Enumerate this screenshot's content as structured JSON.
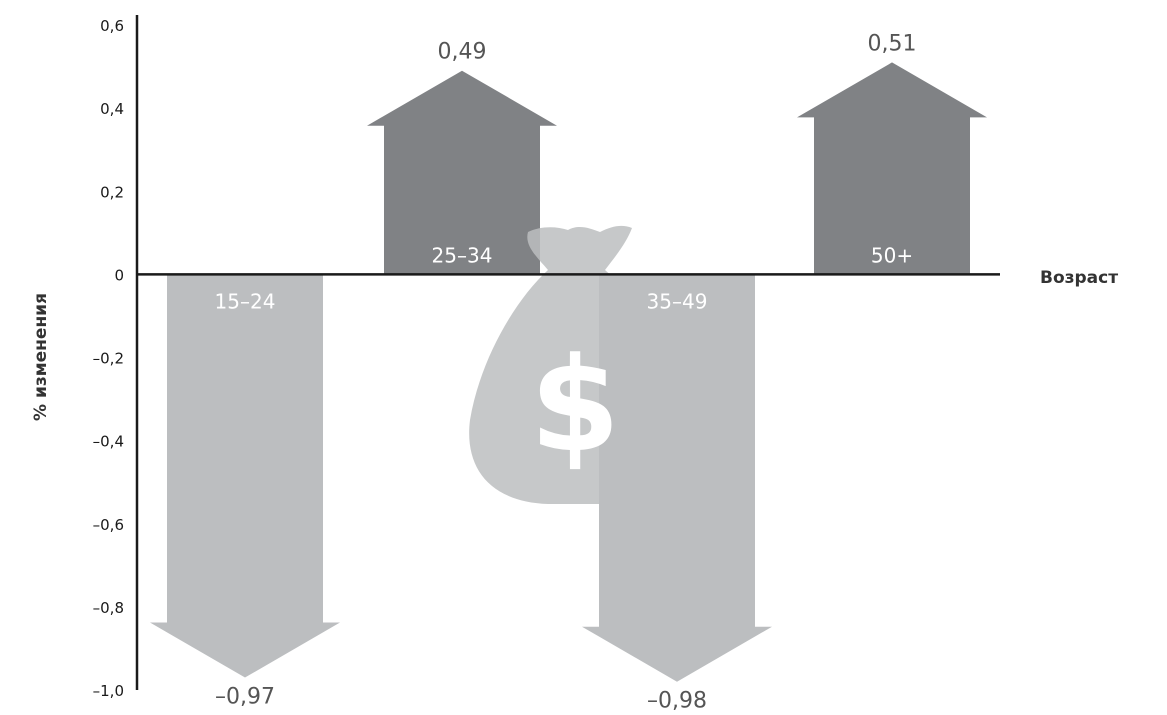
{
  "chart_data": {
    "type": "bar",
    "categories": [
      "15–24",
      "25–34",
      "35–49",
      "50+"
    ],
    "values": [
      -0.97,
      0.49,
      -0.98,
      0.51
    ],
    "value_labels": [
      "–0,97",
      "0,49",
      "–0,98",
      "0,51"
    ],
    "ylabel": "% изменения",
    "xlabel": "Возраст",
    "ylim": [
      -1.0,
      0.6
    ],
    "yticks": [
      0.6,
      0.4,
      0.2,
      0,
      -0.2,
      -0.4,
      -0.6,
      -0.8,
      -1.0
    ],
    "ytick_labels": [
      "0,6",
      "0,4",
      "0,2",
      "0",
      "–0,2",
      "–0,4",
      "–0,6",
      "–0,8",
      "–1,0"
    ],
    "grid": false,
    "legend": "none",
    "mark_style": "arrows",
    "colors": {
      "positive": "#808285",
      "negative": "#bcbec0",
      "axis": "#1a1a1a",
      "moneybag_light": "#bcbec0",
      "moneybag_dark": "#939598"
    },
    "decoration_icon": "money-bag-icon",
    "decoration_symbol": "$"
  }
}
